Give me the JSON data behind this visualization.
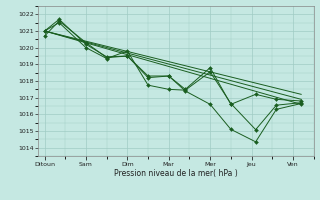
{
  "x_labels": [
    "Ditoun",
    "Sam",
    "Dim",
    "Mar",
    "Mer",
    "Jeu",
    "Ven"
  ],
  "xlabel": "Pression niveau de la mer( hPa )",
  "ylim": [
    1013.5,
    1022.5
  ],
  "yticks": [
    1014,
    1015,
    1016,
    1017,
    1018,
    1019,
    1020,
    1021,
    1022
  ],
  "bg_color": "#c5e8e2",
  "line_color": "#1a5e20",
  "grid_color": "#a0ccc4",
  "trend_lines": [
    {
      "x": [
        0,
        6.2
      ],
      "y": [
        1021.0,
        1016.6
      ]
    },
    {
      "x": [
        0,
        6.2
      ],
      "y": [
        1021.0,
        1016.9
      ]
    },
    {
      "x": [
        0,
        6.2
      ],
      "y": [
        1021.0,
        1017.2
      ]
    }
  ],
  "series": [
    {
      "x": [
        0,
        0.35,
        1.0,
        1.5,
        2.0,
        2.5,
        3.0,
        3.4,
        4.0,
        4.5,
        5.1,
        5.6,
        6.2
      ],
      "y": [
        1020.7,
        1021.6,
        1020.3,
        1019.4,
        1019.5,
        1018.2,
        1018.3,
        1017.5,
        1018.8,
        1016.6,
        1017.2,
        1016.9,
        1016.8
      ],
      "marker": true
    },
    {
      "x": [
        0,
        0.35,
        1.0,
        1.5,
        2.0,
        2.5,
        3.0,
        3.4,
        4.0,
        4.5,
        5.1,
        5.6,
        6.2
      ],
      "y": [
        1021.0,
        1021.5,
        1020.0,
        1019.35,
        1019.8,
        1017.75,
        1017.5,
        1017.45,
        1018.55,
        1016.65,
        1015.08,
        1016.55,
        1016.7
      ],
      "marker": true
    },
    {
      "x": [
        0,
        0.35,
        1.0,
        1.5,
        2.0,
        2.5,
        3.0,
        3.4,
        4.0,
        4.5,
        5.1,
        5.6,
        6.2
      ],
      "y": [
        1021.0,
        1021.7,
        1020.2,
        1019.45,
        1019.5,
        1018.3,
        1018.3,
        1017.4,
        1016.6,
        1015.1,
        1014.35,
        1016.3,
        1016.65
      ],
      "marker": true
    }
  ],
  "xlim": [
    -0.15,
    6.5
  ],
  "x_tick_positions": [
    0,
    1,
    2,
    3,
    4,
    5,
    6
  ],
  "figsize": [
    3.2,
    2.0
  ],
  "dpi": 100
}
